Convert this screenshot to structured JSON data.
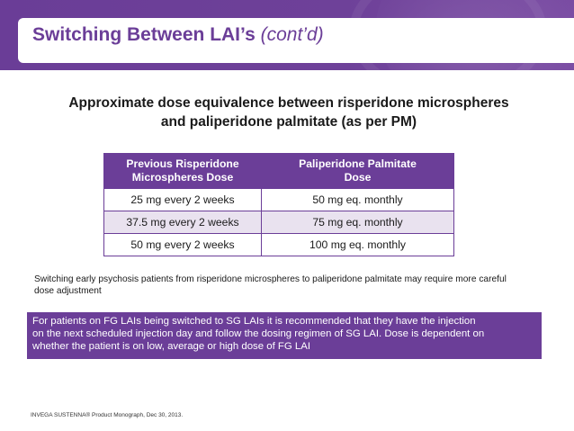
{
  "header": {
    "title": "Switching Between LAI’s",
    "title_suffix": "(cont’d)"
  },
  "subtitle": {
    "line1": "Approximate dose equivalence between risperidone microspheres",
    "line2": "and paliperidone palmitate (as per PM)"
  },
  "table": {
    "headers": [
      "Previous Risperidone Microspheres Dose",
      "Paliperidone Palmitate Dose"
    ],
    "header_lines": {
      "h1a": "Previous Risperidone",
      "h1b": "Microspheres Dose",
      "h2a": "Paliperidone Palmitate",
      "h2b": "Dose"
    },
    "rows": [
      [
        "25 mg every 2 weeks",
        "50 mg eq. monthly"
      ],
      [
        "37.5 mg every 2 weeks",
        "75 mg eq. monthly"
      ],
      [
        "50 mg every 2 weeks",
        "100 mg eq. monthly"
      ]
    ]
  },
  "note": {
    "line1": "Switching early psychosis patients from risperidone microspheres to paliperidone palmitate may require more careful",
    "line2": "dose adjustment"
  },
  "callout": {
    "line1": "For patients on FG LAIs being switched to SG LAIs  it is recommended that they have the injection",
    "line2": "on the next scheduled injection day and follow the dosing regimen of SG LAI.  Dose is dependent on",
    "line3": "whether the patient is on low, average or high dose of FG LAI"
  },
  "footnote": "INVEGA SUSTENNA® Product Monograph, Dec 30, 2013.",
  "colors": {
    "brand_purple": "#6b3e98",
    "row_alt": "#e9e2ef"
  }
}
